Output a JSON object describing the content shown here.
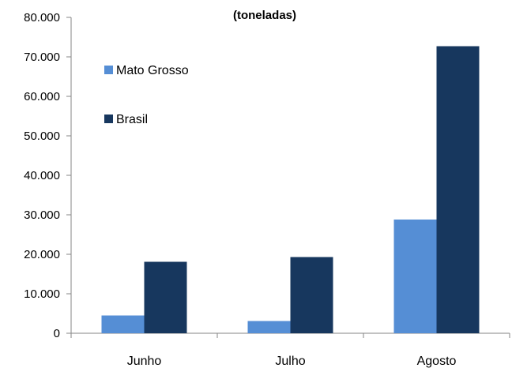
{
  "chart_data": {
    "type": "bar",
    "title": "(toneladas)",
    "xlabel": "",
    "ylabel": "",
    "categories": [
      "Junho",
      "Julho",
      "Agosto"
    ],
    "series": [
      {
        "name": "Mato Grosso",
        "values": [
          4500,
          3100,
          28800
        ],
        "color": "#558ED5"
      },
      {
        "name": "Brasil",
        "values": [
          18100,
          19300,
          72700
        ],
        "color": "#17375E"
      }
    ],
    "ylim": [
      0,
      80000
    ],
    "yticks": [
      0,
      10000,
      20000,
      30000,
      40000,
      50000,
      60000,
      70000,
      80000
    ],
    "ytick_labels": [
      "0",
      "10.000",
      "20.000",
      "30.000",
      "40.000",
      "50.000",
      "60.000",
      "70.000",
      "80.000"
    ],
    "grid": false,
    "legend_position": "top-left"
  }
}
